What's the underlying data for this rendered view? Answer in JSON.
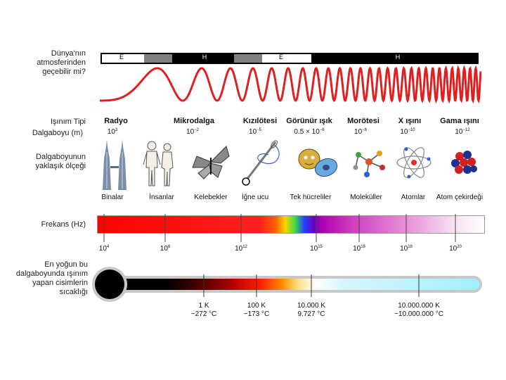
{
  "labels": {
    "atmosphere": "Dünya'nın atmosferinden geçebilir mi?",
    "radiation_type": "Işınım Tipi",
    "wavelength": "Dalgaboyu (m)",
    "approx_scale": "Dalgaboyunun yaklaşık ölçeği",
    "frequency": "Frekans (Hz)",
    "temperature": "En yoğun bu dalgaboyunda ışınım yapan cisimlerin sıcaklığı"
  },
  "atmosphere_marks": [
    "E",
    "H",
    "E",
    "H"
  ],
  "radiation_types": [
    {
      "name": "Radyo",
      "wavelength_base": "10",
      "wavelength_exp": "3"
    },
    {
      "name": "Mikrodalga",
      "wavelength_base": "10",
      "wavelength_exp": "−2"
    },
    {
      "name": "Kızılötesi",
      "wavelength_base": "10",
      "wavelength_exp": "−5"
    },
    {
      "name": "Görünür ışık",
      "wavelength_base": "0.5 × 10",
      "wavelength_exp": "−6"
    },
    {
      "name": "Morötesi",
      "wavelength_base": "10",
      "wavelength_exp": "−8"
    },
    {
      "name": "X ışını",
      "wavelength_base": "10",
      "wavelength_exp": "−10"
    },
    {
      "name": "Gama ışını",
      "wavelength_base": "10",
      "wavelength_exp": "−12"
    }
  ],
  "scale_objects": [
    "Binalar",
    "İnsanlar",
    "Kelebekler",
    "İğne ucu",
    "Tek hücreliler",
    "Moleküller",
    "Atomlar",
    "Atom çekirdeği"
  ],
  "frequencies": [
    {
      "base": "10",
      "exp": "4"
    },
    {
      "base": "10",
      "exp": "8"
    },
    {
      "base": "10",
      "exp": "12"
    },
    {
      "base": "10",
      "exp": "15"
    },
    {
      "base": "10",
      "exp": "16"
    },
    {
      "base": "10",
      "exp": "18"
    },
    {
      "base": "10",
      "exp": "20"
    }
  ],
  "temperatures": [
    {
      "k": "1 K",
      "c": "−272 °C"
    },
    {
      "k": "100 K",
      "c": "−173 °C"
    },
    {
      "k": "10.000 K",
      "c": "9.727 °C"
    },
    {
      "k": "10.000.000 K",
      "c": "~10.000.000 °C"
    }
  ],
  "colors": {
    "wave": "#e02020",
    "atmosphere_dark": "#000000",
    "atmosphere_gray": "#808080",
    "thermometer_dark": "#000000",
    "thermometer_light": "#a0f0ff"
  }
}
